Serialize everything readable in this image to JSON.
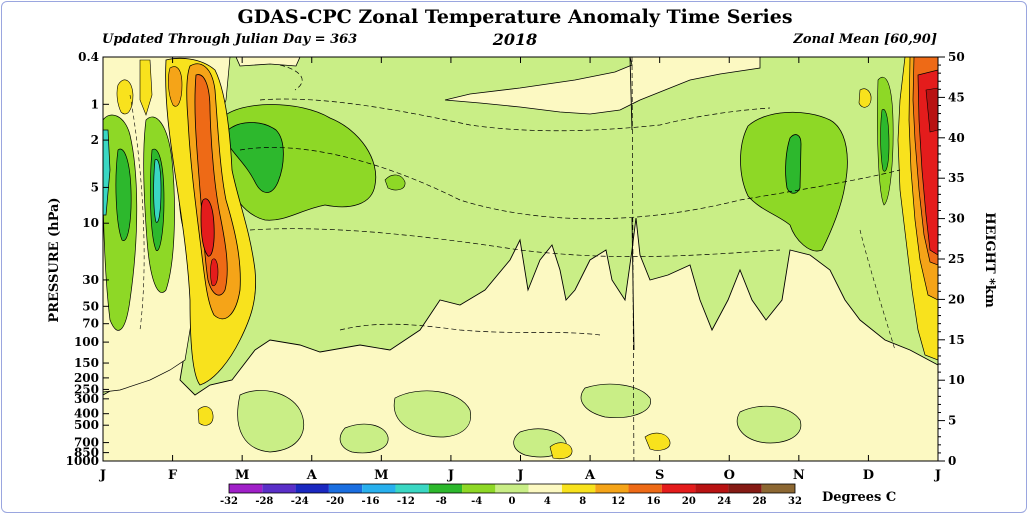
{
  "chart_data": {
    "type": "heatmap",
    "title": "GDAS-CPC Zonal Temperature Anomaly Time Series",
    "subtitle_left": "Updated Through Julian Day = 363",
    "subtitle_center": "2018",
    "subtitle_right": "Zonal Mean [60,90]",
    "ylabel_left": "PRESSURE (hPa)",
    "ylabel_right": "HEIGHT *km",
    "colorbar_label": "Degrees C",
    "x_ticks": [
      "J",
      "F",
      "M",
      "A",
      "M",
      "J",
      "J",
      "A",
      "S",
      "O",
      "N",
      "D",
      "J"
    ],
    "pressure_ticks": [
      "0.4",
      "1",
      "2",
      "5",
      "10",
      "30",
      "50",
      "70",
      "100",
      "150",
      "200",
      "250",
      "300",
      "400",
      "500",
      "700",
      "850",
      "1000"
    ],
    "height_ticks": [
      "50",
      "45",
      "40",
      "35",
      "30",
      "25",
      "20",
      "15",
      "10",
      "5",
      "0"
    ],
    "colorbar_ticks": [
      "-32",
      "-28",
      "-24",
      "-20",
      "-16",
      "-12",
      "-8",
      "-4",
      "0",
      "4",
      "8",
      "12",
      "16",
      "20",
      "24",
      "28",
      "32"
    ],
    "colorbar_colors": [
      "#a020c8",
      "#5a2fc8",
      "#1a28c0",
      "#1a6ee0",
      "#28b0ee",
      "#3ad7c3",
      "#2db82d",
      "#8ed826",
      "#c9ee86",
      "#fcf9c2",
      "#f8e21d",
      "#f5a418",
      "#ee6a16",
      "#e41c1c",
      "#b81212",
      "#851a14",
      "#8c6732"
    ],
    "features": [
      {
        "period": "Jan",
        "levels": "stratosphere",
        "anomaly": "cold bands (-12 to -8)"
      },
      {
        "period": "Feb",
        "levels": "10-150 hPa",
        "anomaly": "warm maximum (+16 to +20)"
      },
      {
        "period": "Mar",
        "levels": "2-10 hPa",
        "anomaly": "cold (-12 to -8)"
      },
      {
        "period": "Nov",
        "levels": "2-10 hPa",
        "anomaly": "cold (-12 to -8)"
      },
      {
        "period": "late Dec",
        "levels": "0.4-100 hPa",
        "anomaly": "warm (+20 to +24)"
      }
    ]
  }
}
